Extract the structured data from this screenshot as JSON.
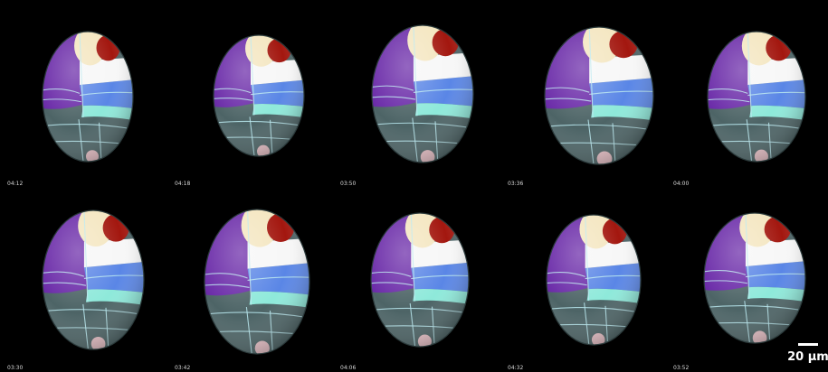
{
  "embryos": [
    {
      "time": "04:12"
    },
    {
      "time": "04:18"
    },
    {
      "time": "03:50"
    },
    {
      "time": "03:36"
    },
    {
      "time": "04:00"
    },
    {
      "time": "03:30"
    },
    {
      "time": "03:42"
    },
    {
      "time": "04:06"
    },
    {
      "time": "04:32"
    },
    {
      "time": "03:52"
    }
  ],
  "scale_bar": {
    "label": "20 µm"
  },
  "colors": {
    "background": "#000000",
    "purple": "#6a2aa8",
    "blue": "#5a86e6",
    "cyan": "#8ee9da",
    "teal_gray": "#4d6466",
    "cream": "#f4e6c0",
    "white": "#f7f7f7",
    "dark_red": "#a3170f",
    "pink": "#e5bec4",
    "outline": "#b8e8ee"
  }
}
